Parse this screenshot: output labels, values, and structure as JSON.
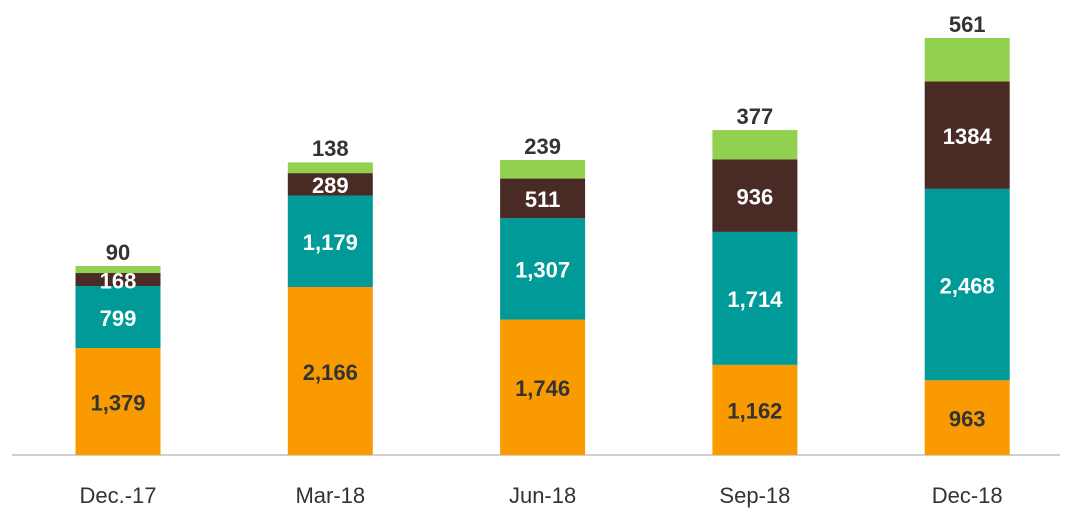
{
  "chart_data": {
    "type": "stacked_bar",
    "categories": [
      "Dec.-17",
      "Mar-18",
      "Jun-18",
      "Sep-18",
      "Dec-18"
    ],
    "series": [
      {
        "color": "#f99b00",
        "values": [
          1379,
          2166,
          1746,
          1162,
          963
        ],
        "value_labels": [
          "1,379",
          "2,166",
          "1,746",
          "1,162",
          "963"
        ]
      },
      {
        "color": "#009a98",
        "values": [
          799,
          1179,
          1307,
          1714,
          2468
        ],
        "value_labels": [
          "799",
          "1,179",
          "1,307",
          "1,714",
          "2,468"
        ]
      },
      {
        "color": "#4a2a25",
        "values": [
          168,
          289,
          511,
          936,
          1384
        ]
      },
      {
        "color": "#92d050",
        "values": [
          90,
          138,
          239,
          377,
          561
        ]
      }
    ]
  }
}
